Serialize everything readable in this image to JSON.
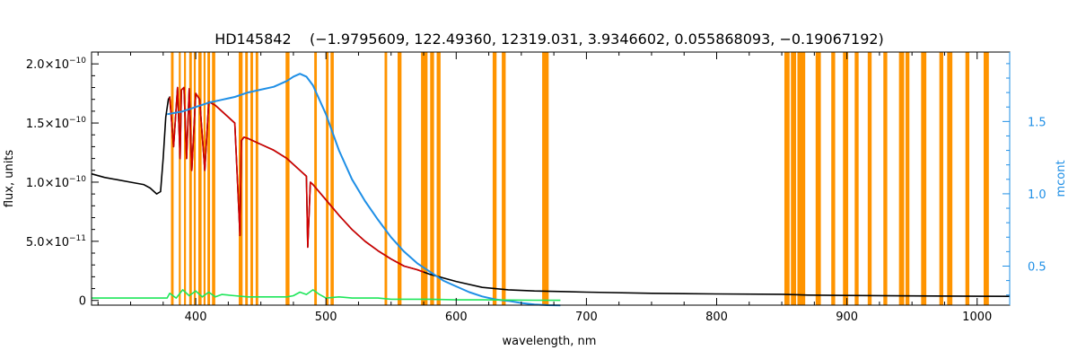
{
  "chart_data": {
    "type": "line",
    "title": "HD145842    (−1.9795609, 122.49360, 12319.031, 3.9346602, 0.055868093, −0.19067192)",
    "xlabel": "wavelength, nm",
    "ylabel": "flux, units",
    "y2label": "mcont",
    "xlim": [
      320,
      1025
    ],
    "ylim": [
      -4e-12,
      2.1e-10
    ],
    "y2lim": [
      0.23,
      1.98
    ],
    "x_ticks": [
      400,
      500,
      600,
      700,
      800,
      900,
      1000
    ],
    "x_tick_labels": [
      "400",
      "500",
      "600",
      "700",
      "800",
      "900",
      "1000"
    ],
    "y_ticks": [
      0,
      5e-11,
      1e-10,
      1.5e-10,
      2e-10
    ],
    "y_tick_labels": [
      {
        "base": "0",
        "exp": ""
      },
      {
        "base": "5.0×10",
        "exp": "−11"
      },
      {
        "base": "1.0×10",
        "exp": "−10"
      },
      {
        "base": "1.5×10",
        "exp": "−10"
      },
      {
        "base": "2.0×10",
        "exp": "−10"
      }
    ],
    "y2_ticks": [
      0.5,
      1.0,
      1.5
    ],
    "y2_tick_labels": [
      "0.5",
      "1.0",
      "1.5"
    ],
    "masked_regions": [
      [
        381,
        383
      ],
      [
        387,
        388.5
      ],
      [
        391,
        392.5
      ],
      [
        395,
        397
      ],
      [
        398.5,
        400
      ],
      [
        402,
        404.5
      ],
      [
        406,
        407.5
      ],
      [
        409,
        411
      ],
      [
        412.5,
        415
      ],
      [
        433,
        436
      ],
      [
        438,
        440
      ],
      [
        442,
        444
      ],
      [
        446,
        448
      ],
      [
        469,
        472
      ],
      [
        491,
        493
      ],
      [
        500,
        502
      ],
      [
        503.5,
        506
      ],
      [
        545,
        547
      ],
      [
        555,
        558
      ],
      [
        573,
        578
      ],
      [
        580,
        583
      ],
      [
        585,
        588
      ],
      [
        628,
        631
      ],
      [
        635,
        638
      ],
      [
        666,
        671
      ],
      [
        852,
        856
      ],
      [
        857,
        861
      ],
      [
        862,
        868
      ],
      [
        876,
        880
      ],
      [
        888,
        891
      ],
      [
        897,
        901
      ],
      [
        906,
        909
      ],
      [
        916,
        919
      ],
      [
        928,
        931
      ],
      [
        940,
        944
      ],
      [
        945,
        948
      ],
      [
        957,
        961
      ],
      [
        971,
        974
      ],
      [
        977,
        981
      ],
      [
        991,
        994
      ],
      [
        1005,
        1009
      ]
    ],
    "colors": {
      "observed": "#000000",
      "model": "#d40000",
      "continuum": "#1f8fe6",
      "residual": "#1ee65a",
      "mask": "#ff9400",
      "right_axis": "#1f8fe6"
    },
    "series": [
      {
        "key": "observed",
        "x": [
          320,
          330,
          340,
          350,
          360,
          365,
          370,
          373,
          375,
          377,
          379,
          380,
          383,
          386,
          388,
          389,
          391,
          393,
          395,
          397,
          400,
          403,
          407,
          410,
          415,
          420,
          425,
          430,
          434,
          435,
          437,
          440,
          450,
          460,
          470,
          480,
          485,
          486,
          488,
          490,
          500,
          510,
          520,
          530,
          540,
          550,
          560,
          570,
          580,
          600,
          620,
          640,
          660,
          680,
          700,
          750,
          800,
          850,
          870,
          900,
          950,
          1000,
          1025
        ],
        "y": [
          1.07e-10,
          1.04e-10,
          1.02e-10,
          1e-10,
          9.8e-11,
          9.5e-11,
          9e-11,
          9.2e-11,
          1.2e-10,
          1.55e-10,
          1.7e-10,
          1.72e-10,
          1.3e-10,
          1.8e-10,
          1.2e-10,
          1.78e-10,
          1.8e-10,
          1.2e-10,
          1.79e-10,
          1.1e-10,
          1.75e-10,
          1.7e-10,
          1.1e-10,
          1.68e-10,
          1.65e-10,
          1.6e-10,
          1.55e-10,
          1.5e-10,
          5.5e-11,
          1.35e-10,
          1.38e-10,
          1.37e-10,
          1.32e-10,
          1.27e-10,
          1.2e-10,
          1.1e-10,
          1.05e-10,
          4.5e-11,
          1e-10,
          9.8e-11,
          8.5e-11,
          7.2e-11,
          6e-11,
          5e-11,
          4.2e-11,
          3.5e-11,
          2.9e-11,
          2.6e-11,
          2.2e-11,
          1.6e-11,
          1.1e-11,
          9e-12,
          8e-12,
          7.5e-12,
          7e-12,
          6e-12,
          5.5e-12,
          5.2e-12,
          4.5e-12,
          4.2e-12,
          3.8e-12,
          3.5e-12,
          3.4e-12
        ]
      },
      {
        "key": "model",
        "x": [
          380,
          383,
          386,
          388,
          389,
          391,
          393,
          395,
          397,
          400,
          403,
          407,
          410,
          415,
          420,
          425,
          430,
          434,
          435,
          437,
          440,
          450,
          460,
          470,
          480,
          485,
          486,
          488,
          490,
          500,
          510,
          520,
          530,
          540,
          550,
          560,
          570,
          575
        ],
        "y": [
          1.72e-10,
          1.3e-10,
          1.8e-10,
          1.2e-10,
          1.78e-10,
          1.8e-10,
          1.2e-10,
          1.79e-10,
          1.1e-10,
          1.75e-10,
          1.7e-10,
          1.1e-10,
          1.68e-10,
          1.65e-10,
          1.6e-10,
          1.55e-10,
          1.5e-10,
          5.5e-11,
          1.35e-10,
          1.38e-10,
          1.37e-10,
          1.32e-10,
          1.27e-10,
          1.2e-10,
          1.1e-10,
          1.05e-10,
          4.5e-11,
          1e-10,
          9.8e-11,
          8.5e-11,
          7.2e-11,
          6e-11,
          5e-11,
          4.2e-11,
          3.5e-11,
          2.9e-11,
          2.6e-11,
          2.4e-11
        ]
      },
      {
        "key": "continuum",
        "axis": "right",
        "x": [
          378,
          390,
          400,
          410,
          420,
          430,
          440,
          450,
          460,
          470,
          475,
          480,
          485,
          490,
          500,
          510,
          520,
          530,
          540,
          550,
          560,
          570,
          580,
          590,
          600,
          610,
          620,
          630,
          640,
          650,
          660,
          670,
          680
        ],
        "y": [
          1.55,
          1.57,
          1.6,
          1.63,
          1.65,
          1.67,
          1.7,
          1.72,
          1.74,
          1.78,
          1.81,
          1.83,
          1.81,
          1.75,
          1.55,
          1.3,
          1.1,
          0.95,
          0.82,
          0.7,
          0.6,
          0.52,
          0.46,
          0.4,
          0.36,
          0.32,
          0.29,
          0.27,
          0.26,
          0.245,
          0.235,
          0.23,
          0.228
        ]
      },
      {
        "key": "residual",
        "x": [
          320,
          350,
          378,
          380,
          385,
          390,
          395,
          400,
          405,
          410,
          415,
          420,
          430,
          440,
          450,
          460,
          470,
          475,
          480,
          485,
          490,
          495,
          500,
          510,
          520,
          530,
          540,
          550,
          560,
          570,
          580,
          600,
          620,
          640,
          660,
          680
        ],
        "y": [
          2e-12,
          2e-12,
          2e-12,
          6e-12,
          2e-12,
          9e-12,
          4e-12,
          8e-12,
          3e-12,
          7e-12,
          3e-12,
          5e-12,
          4e-12,
          3e-12,
          3e-12,
          3e-12,
          3e-12,
          4e-12,
          7e-12,
          5e-12,
          9e-12,
          5e-12,
          2e-12,
          3e-12,
          2e-12,
          2e-12,
          2e-12,
          1e-12,
          1e-12,
          1e-12,
          1e-12,
          5e-13,
          5e-13,
          3e-13,
          2e-13,
          1e-13
        ]
      }
    ]
  }
}
